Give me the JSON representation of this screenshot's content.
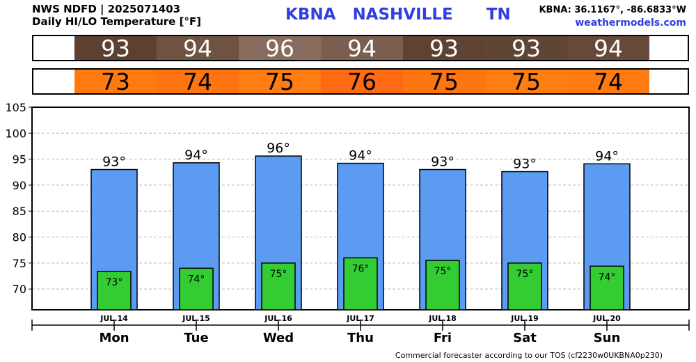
{
  "header": {
    "line1": "NWS NDFD | 2025071403",
    "line2": "Daily HI/LO Temperature [°F]",
    "station_id": "KBNA",
    "station_name": "NASHVILLE",
    "state": "TN",
    "coords": "KBNA: 36.1167°, -86.6833°W",
    "site": "weathermodels.com"
  },
  "strip_colors": {
    "hi": [
      "#5c4131",
      "#6e5343",
      "#876b5c",
      "#7a5e4f",
      "#5e4333",
      "#5f4535",
      "#66493a"
    ],
    "lo": [
      "#ff7b0f",
      "#ff7410",
      "#ff7d13",
      "#ff6a12",
      "#ff7611",
      "#ff7d11",
      "#ff7a10"
    ]
  },
  "chart_data": {
    "type": "bar",
    "categories": [
      "Mon",
      "Tue",
      "Wed",
      "Thu",
      "Fri",
      "Sat",
      "Sun"
    ],
    "dates": [
      "JUL.14",
      "JUL.15",
      "JUL.16",
      "JUL.17",
      "JUL.18",
      "JUL.19",
      "JUL.20"
    ],
    "series": [
      {
        "values": [
          93,
          94.3,
          95.6,
          94.2,
          93,
          92.6,
          94.1
        ],
        "labels": [
          "93°",
          "94°",
          "96°",
          "94°",
          "93°",
          "93°",
          "94°"
        ],
        "color": "#5b9cf2"
      },
      {
        "values": [
          73.4,
          74,
          75,
          76,
          75.5,
          75,
          74.4
        ],
        "labels": [
          "73°",
          "74°",
          "75°",
          "76°",
          "75°",
          "75°",
          "74°"
        ],
        "color": "#33cc33"
      }
    ],
    "strip_hi": [
      "93",
      "94",
      "96",
      "94",
      "93",
      "93",
      "94"
    ],
    "strip_lo": [
      "73",
      "74",
      "75",
      "76",
      "75",
      "75",
      "74"
    ],
    "yticks": [
      70,
      75,
      80,
      85,
      90,
      95,
      100,
      105
    ],
    "ylim": [
      66,
      105
    ],
    "grid": true
  },
  "footer": "Commercial forecaster according to our TOS (cf2230w0UKBNA0p230)"
}
